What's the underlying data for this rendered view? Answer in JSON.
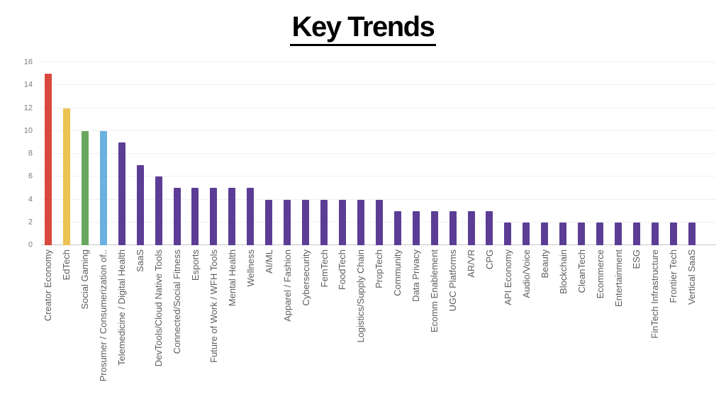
{
  "page": {
    "title": "Key Trends"
  },
  "chart_data": {
    "type": "bar",
    "title": "Key Trends",
    "xlabel": "",
    "ylabel": "",
    "ylim": [
      0,
      16
    ],
    "y_ticks": [
      0,
      2,
      4,
      6,
      8,
      10,
      12,
      14,
      16
    ],
    "grid": true,
    "legend": false,
    "categories": [
      "Creator Economy",
      "EdTech",
      "Social Gaming",
      "Prosumer / Consumerization of..",
      "Telemedicine / Digital Health",
      "SaaS",
      "DevTools/Cloud Native Tools",
      "Connected/Social Fitness",
      "Esports",
      "Future of Work / WFH Tools",
      "Mental Health",
      "Wellness",
      "AI/ML",
      "Apparel / Fashion",
      "Cybersecurity",
      "FemTech",
      "FoodTech",
      "Logistics/Supply Chain",
      "PropTech",
      "Community",
      "Data Privacy",
      "Ecomm Enablement",
      "UGC Platforms",
      "AR/VR",
      "CPG",
      "API Economy",
      "Audio/Voice",
      "Beauty",
      "Blockchain",
      "CleanTech",
      "Ecommerce",
      "Entertainment",
      "ESG",
      "FinTech Infrastructure",
      "Frontier Tech",
      "Vertical SaaS"
    ],
    "values": [
      15,
      12,
      10,
      10,
      9,
      7,
      6,
      5,
      5,
      5,
      5,
      5,
      4,
      4,
      4,
      4,
      4,
      4,
      4,
      3,
      3,
      3,
      3,
      3,
      3,
      2,
      2,
      2,
      2,
      2,
      2,
      2,
      2,
      2,
      2,
      2
    ],
    "bar_colors": [
      "#d8483c",
      "#ecc253",
      "#69a85e",
      "#6ab0e0",
      "#5c3d96",
      "#5c3d96",
      "#5c3d96",
      "#5c3d96",
      "#5c3d96",
      "#5c3d96",
      "#5c3d96",
      "#5c3d96",
      "#5c3d96",
      "#5c3d96",
      "#5c3d96",
      "#5c3d96",
      "#5c3d96",
      "#5c3d96",
      "#5c3d96",
      "#5c3d96",
      "#5c3d96",
      "#5c3d96",
      "#5c3d96",
      "#5c3d96",
      "#5c3d96",
      "#5c3d96",
      "#5c3d96",
      "#5c3d96",
      "#5c3d96",
      "#5c3d96",
      "#5c3d96",
      "#5c3d96",
      "#5c3d96",
      "#5c3d96",
      "#5c3d96",
      "#5c3d96"
    ],
    "style_colors": {
      "title": "#000000",
      "grid": "#f0f0f0",
      "axis_line": "#c6c6c6",
      "y_tick_label": "#7a7a7a",
      "category_label": "#5e5e5e",
      "background": "#ffffff"
    }
  }
}
